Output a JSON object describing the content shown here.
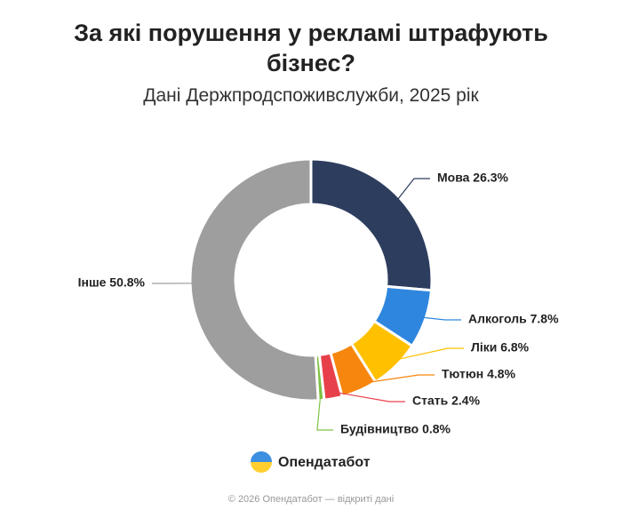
{
  "chart_data": {
    "type": "pie",
    "title": "За які порушення у рекламі штрафують бізнес?",
    "subtitle": "Дані Держпродспоживслужби, 2025 рік",
    "values": [
      26.3,
      7.8,
      6.8,
      4.8,
      2.4,
      0.8,
      50.8
    ],
    "value_labels": [
      "Мова 26.3%",
      "Алкоголь 7.8%",
      "Ліки 6.8%",
      "Тютюн 4.8%",
      "Стать 2.4%",
      "Будівництво 0.8%",
      "Інше 50.8%"
    ],
    "colors": [
      "#2d3d5e",
      "#2f86de",
      "#ffc000",
      "#f7860e",
      "#e8404a",
      "#7cc242",
      "#9e9e9e"
    ]
  },
  "branding": {
    "logo": "Опендатабот",
    "footer": "© 2026 Опендатабот — відкриті дані"
  }
}
